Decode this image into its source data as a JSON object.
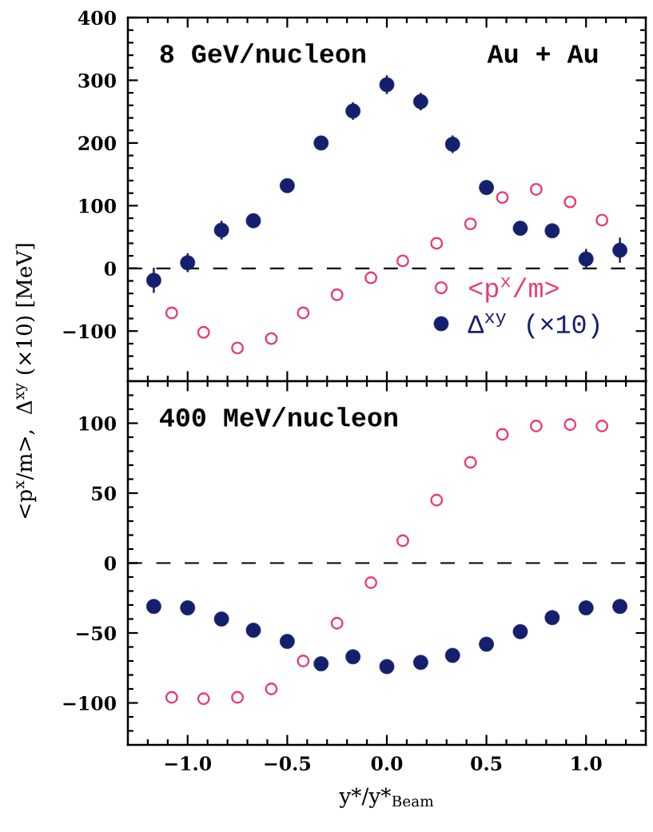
{
  "chart_data": [
    {
      "type": "scatter",
      "ylabel": "<p$^{x}$/m>,  Δ$^{xy}$ (×10) [MeV]",
      "annotations": [
        "8 GeV/nucleon",
        "Au + Au"
      ],
      "xlim": [
        -1.3,
        1.3
      ],
      "ylim": [
        -180,
        400
      ],
      "xticks": [
        {
          "value": -1.2,
          "label": null
        },
        {
          "value": -1.1,
          "label": null
        },
        {
          "value": -1.0,
          "label": null
        },
        {
          "value": -0.9,
          "label": null
        },
        {
          "value": -0.8,
          "label": null
        },
        {
          "value": -0.7,
          "label": null
        },
        {
          "value": -0.6,
          "label": null
        },
        {
          "value": -0.5,
          "label": null
        },
        {
          "value": -0.4,
          "label": null
        },
        {
          "value": -0.3,
          "label": null
        },
        {
          "value": -0.2,
          "label": null
        },
        {
          "value": -0.1,
          "label": null
        },
        {
          "value": 0,
          "label": null
        },
        {
          "value": 0.1,
          "label": null
        },
        {
          "value": 0.2,
          "label": null
        },
        {
          "value": 0.3,
          "label": null
        },
        {
          "value": 0.4,
          "label": null
        },
        {
          "value": 0.5,
          "label": null
        },
        {
          "value": 0.6,
          "label": null
        },
        {
          "value": 0.7,
          "label": null
        },
        {
          "value": 0.8,
          "label": null
        },
        {
          "value": 0.9,
          "label": null
        },
        {
          "value": 1.0,
          "label": null
        },
        {
          "value": 1.1,
          "label": null
        },
        {
          "value": 1.2,
          "label": null
        }
      ],
      "yticks": [
        {
          "value": -160,
          "label": null
        },
        {
          "value": -140,
          "label": null
        },
        {
          "value": -120,
          "label": null
        },
        {
          "value": -100,
          "label": "−100"
        },
        {
          "value": -80,
          "label": null
        },
        {
          "value": -60,
          "label": null
        },
        {
          "value": -40,
          "label": null
        },
        {
          "value": -20,
          "label": null
        },
        0,
        {
          "value": 20,
          "label": null
        },
        {
          "value": 40,
          "label": null
        },
        {
          "value": 60,
          "label": null
        },
        {
          "value": 80,
          "label": null
        },
        100,
        {
          "value": 120,
          "label": null
        },
        {
          "value": 140,
          "label": null
        },
        {
          "value": 160,
          "label": null
        },
        {
          "value": 180,
          "label": null
        },
        200,
        {
          "value": 220,
          "label": null
        },
        {
          "value": 240,
          "label": null
        },
        {
          "value": 260,
          "label": null
        },
        {
          "value": 280,
          "label": null
        },
        300,
        {
          "value": 320,
          "label": null
        },
        {
          "value": 340,
          "label": null
        },
        {
          "value": 360,
          "label": null
        },
        {
          "value": 380,
          "label": null
        },
        400
      ],
      "tick_labels": "y",
      "legend": "bottom right",
      "marker": "circle",
      "ref_lines": [
        {
          "axis": "y",
          "value": 0,
          "line_style": "dashed",
          "color": "#000000"
        }
      ],
      "series": [
        {
          "name": "<p$^{x}$/m>",
          "color": "#e63c78",
          "x": [
            -1.08,
            -0.92,
            -0.75,
            -0.58,
            -0.42,
            -0.25,
            -0.08,
            0.08,
            0.25,
            0.42,
            0.58,
            0.75,
            0.92,
            1.08
          ],
          "values": [
            -71,
            -102,
            -127,
            -112,
            -71,
            -42,
            -15,
            12,
            40,
            71,
            113,
            126,
            106,
            77
          ]
        },
        {
          "name": "Δ$^{xy}$ (×10)",
          "color": "#14206e",
          "x": [
            -1.17,
            -1.0,
            -0.83,
            -0.67,
            -0.5,
            -0.33,
            -0.17,
            0,
            0.17,
            0.33,
            0.5,
            0.67,
            0.83,
            1.0,
            1.17
          ],
          "values": [
            -19,
            9,
            61,
            76,
            132,
            200,
            251,
            293,
            266,
            198,
            129,
            64,
            60,
            15,
            29
          ],
          "errors": [
            20,
            15,
            15,
            null,
            null,
            null,
            14,
            15,
            14,
            14,
            null,
            null,
            null,
            16,
            20
          ]
        }
      ]
    },
    {
      "type": "scatter",
      "xlabel": "y*/y*$_{Beam}$",
      "annotations": [
        "400 MeV/nucleon"
      ],
      "xlim": [
        -1.3,
        1.3
      ],
      "ylim": [
        -130,
        130
      ],
      "marker": "circle",
      "xticks": [
        {
          "value": -1.2,
          "label": null
        },
        {
          "value": -1.1,
          "label": null
        },
        {
          "value": -1.0,
          "label": "−1.0"
        },
        {
          "value": -0.9,
          "label": null
        },
        {
          "value": -0.8,
          "label": null
        },
        {
          "value": -0.7,
          "label": null
        },
        {
          "value": -0.6,
          "label": null
        },
        {
          "value": -0.5,
          "label": "−0.5"
        },
        {
          "value": -0.4,
          "label": null
        },
        {
          "value": -0.3,
          "label": null
        },
        {
          "value": -0.2,
          "label": null
        },
        {
          "value": -0.1,
          "label": null
        },
        {
          "value": 0,
          "label": "0.0"
        },
        {
          "value": 0.1,
          "label": null
        },
        {
          "value": 0.2,
          "label": null
        },
        {
          "value": 0.3,
          "label": null
        },
        {
          "value": 0.4,
          "label": null
        },
        {
          "value": 0.5,
          "label": "0.5"
        },
        {
          "value": 0.6,
          "label": null
        },
        {
          "value": 0.7,
          "label": null
        },
        {
          "value": 0.8,
          "label": null
        },
        {
          "value": 0.9,
          "label": null
        },
        {
          "value": 1.0,
          "label": "1.0"
        },
        {
          "value": 1.1,
          "label": null
        },
        {
          "value": 1.2,
          "label": null
        }
      ],
      "yticks": [
        {
          "value": -120,
          "label": null
        },
        {
          "value": -110,
          "label": null
        },
        {
          "value": -100,
          "label": "−100"
        },
        {
          "value": -90,
          "label": null
        },
        {
          "value": -80,
          "label": null
        },
        {
          "value": -70,
          "label": null
        },
        {
          "value": -60,
          "label": null
        },
        {
          "value": -50,
          "label": "−50"
        },
        {
          "value": -40,
          "label": null
        },
        {
          "value": -30,
          "label": null
        },
        {
          "value": -20,
          "label": null
        },
        {
          "value": -10,
          "label": null
        },
        0,
        {
          "value": 10,
          "label": null
        },
        {
          "value": 20,
          "label": null
        },
        {
          "value": 30,
          "label": null
        },
        {
          "value": 40,
          "label": null
        },
        50,
        {
          "value": 60,
          "label": null
        },
        {
          "value": 70,
          "label": null
        },
        {
          "value": 80,
          "label": null
        },
        {
          "value": 90,
          "label": null
        },
        100,
        {
          "value": 110,
          "label": null
        },
        {
          "value": 120,
          "label": null
        }
      ],
      "ref_lines": [
        {
          "axis": "y",
          "value": 0,
          "line_style": "dashed",
          "color": "#000000"
        }
      ],
      "series": [
        {
          "color": "#e63c78",
          "x": [
            -1.08,
            -0.92,
            -0.75,
            -0.58,
            -0.42,
            -0.25,
            -0.08,
            0.08,
            0.25,
            0.42,
            0.58,
            0.75,
            0.92,
            1.08
          ],
          "values": [
            -96,
            -97,
            -96,
            -90,
            -70,
            -43,
            -14,
            16,
            45,
            72,
            92,
            98,
            99,
            98
          ]
        },
        {
          "color": "#14206e",
          "x": [
            -1.17,
            -1.0,
            -0.83,
            -0.67,
            -0.5,
            -0.33,
            -0.17,
            0,
            0.17,
            0.33,
            0.5,
            0.67,
            0.83,
            1.0,
            1.17
          ],
          "values": [
            -31,
            -32,
            -40,
            -48,
            -56,
            -72,
            -67,
            -74,
            -71,
            -66,
            -58,
            -49,
            -39,
            -32,
            -31
          ]
        }
      ]
    }
  ]
}
